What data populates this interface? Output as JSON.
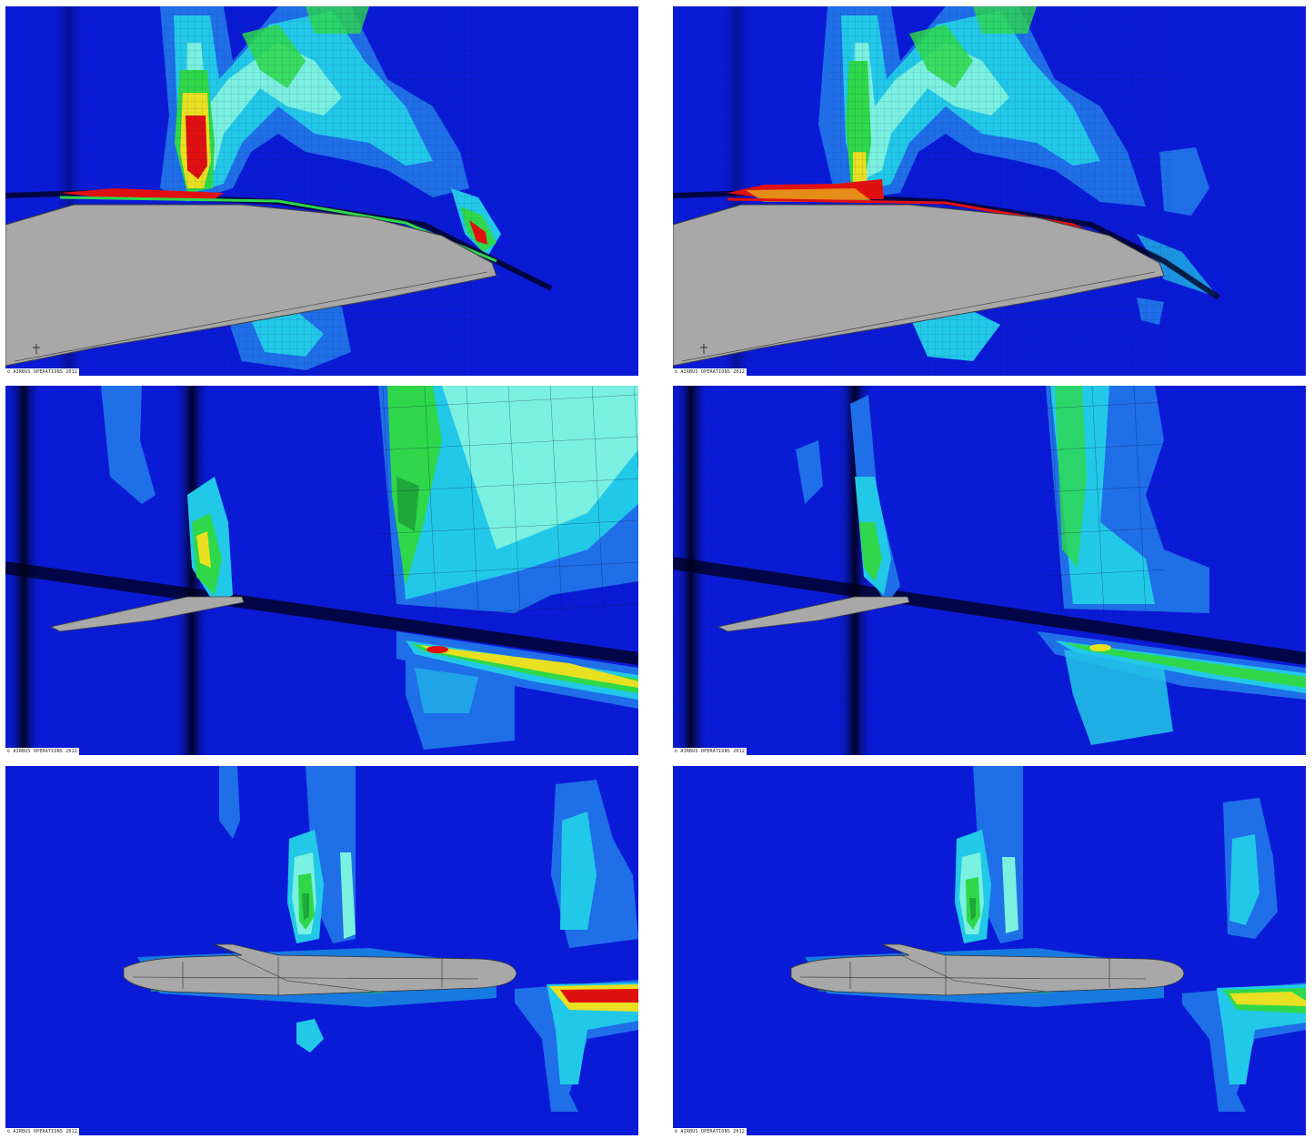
{
  "figure": {
    "panels": [
      {
        "id": "p1",
        "view": "wing-section-closeup",
        "copyright": "© AIRBUS OPERATIONS 2012"
      },
      {
        "id": "p2",
        "view": "wing-section-closeup",
        "copyright": "© AIRBUS OPERATIONS 2012"
      },
      {
        "id": "p3",
        "view": "wing-span-view",
        "copyright": "© AIRBUS OPERATIONS 2012"
      },
      {
        "id": "p4",
        "view": "wing-span-view",
        "copyright": "© AIRBUS OPERATIONS 2012"
      },
      {
        "id": "p5",
        "view": "aircraft-side-view",
        "copyright": "© AIRBUS OPERATIONS 2012"
      },
      {
        "id": "p6",
        "view": "aircraft-side-view",
        "copyright": "© AIRBUS OPERATIONS 2012"
      }
    ],
    "colors": {
      "background": "#0a1bd8",
      "level1": "#1f6fe8",
      "level2": "#22c8e8",
      "level3": "#7af0e0",
      "level4": "#2ed84a",
      "level5": "#e8e020",
      "level6": "#e01010",
      "geometry": "#a8a8a8"
    }
  }
}
